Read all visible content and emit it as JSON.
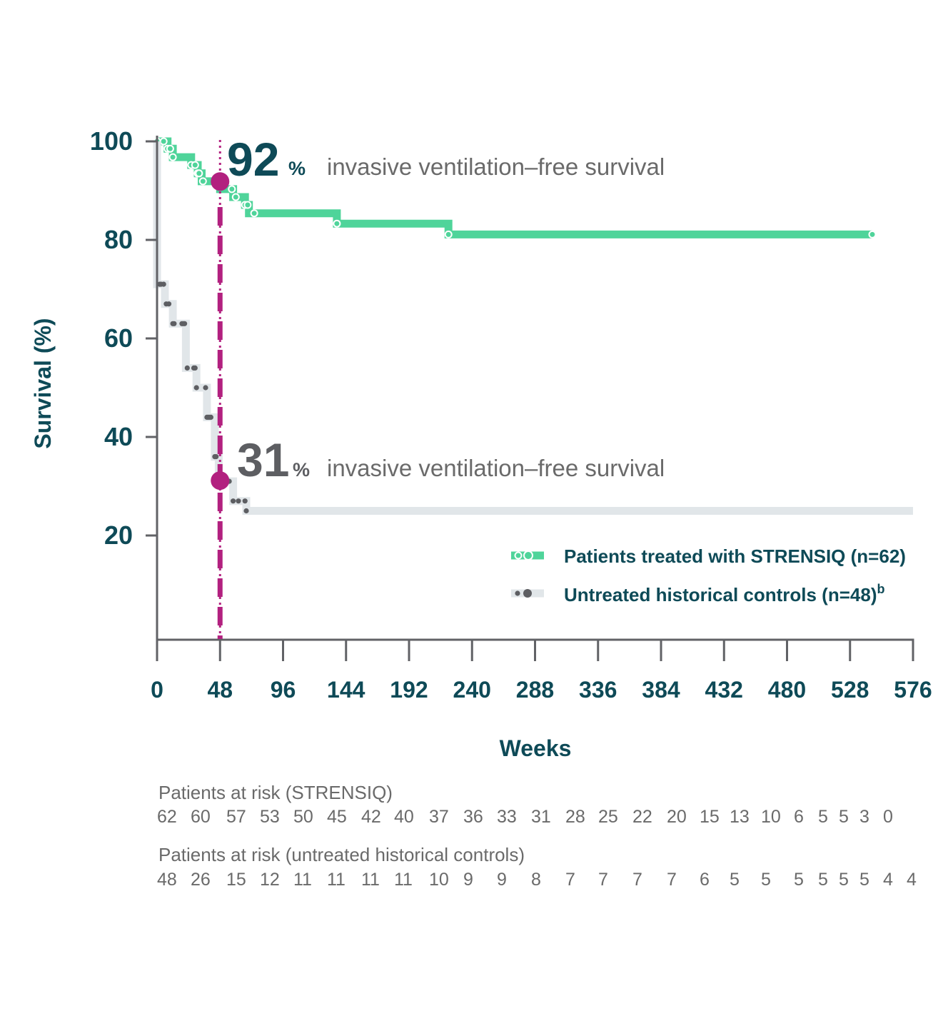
{
  "colors": {
    "axis": "#616266",
    "label": "#0e4a57",
    "treated": "#4fd49a",
    "control_line": "#e1e6e9",
    "control_dot": "#5d5e62",
    "marker": "#b2207f",
    "text_gray": "#6a6a6a"
  },
  "chart_data": {
    "type": "line",
    "xlabel": "Weeks",
    "ylabel": "Survival (%)",
    "xlim": [
      0,
      576
    ],
    "ylim": [
      0,
      100
    ],
    "x_ticks": [
      "0",
      "48",
      "96",
      "144",
      "192",
      "240",
      "288",
      "336",
      "384",
      "432",
      "480",
      "528",
      "576"
    ],
    "y_ticks": [
      "20",
      "40",
      "60",
      "80",
      "100"
    ],
    "series": [
      {
        "name": "Patients treated with STRENSIQ (n=62)",
        "style": "step",
        "points": [
          [
            0,
            100
          ],
          [
            8,
            100
          ],
          [
            8,
            98.5
          ],
          [
            12,
            98.5
          ],
          [
            12,
            96.8
          ],
          [
            26,
            96.8
          ],
          [
            26,
            95.2
          ],
          [
            31,
            95.2
          ],
          [
            31,
            93.5
          ],
          [
            34,
            93.5
          ],
          [
            34,
            91.9
          ],
          [
            48,
            91.9
          ],
          [
            48,
            90.3
          ],
          [
            58,
            90.3
          ],
          [
            58,
            88.7
          ],
          [
            67,
            88.7
          ],
          [
            67,
            87.1
          ],
          [
            70,
            87.1
          ],
          [
            70,
            85.4
          ],
          [
            137,
            85.4
          ],
          [
            137,
            83.3
          ],
          [
            222,
            83.3
          ],
          [
            222,
            81.1
          ],
          [
            545,
            81.1
          ]
        ],
        "censor_x": [
          0,
          5,
          8,
          10,
          12,
          26,
          29,
          31,
          32,
          35,
          57,
          60,
          67,
          69,
          74,
          137,
          222,
          545
        ]
      },
      {
        "name": "Untreated historical controls (n=48)",
        "style": "step",
        "points": [
          [
            0,
            100
          ],
          [
            0,
            71
          ],
          [
            6,
            71
          ],
          [
            6,
            67
          ],
          [
            12,
            67
          ],
          [
            12,
            63
          ],
          [
            22,
            63
          ],
          [
            22,
            54
          ],
          [
            30,
            54
          ],
          [
            30,
            50
          ],
          [
            38,
            50
          ],
          [
            38,
            44
          ],
          [
            44,
            44
          ],
          [
            44,
            36
          ],
          [
            47,
            36
          ],
          [
            47,
            31
          ],
          [
            58,
            31
          ],
          [
            58,
            27
          ],
          [
            68,
            27
          ],
          [
            68,
            25
          ],
          [
            576,
            25
          ]
        ],
        "censor_x": [
          2,
          3,
          5,
          7,
          9,
          12,
          13,
          19,
          20,
          21,
          23,
          28,
          29,
          30,
          37,
          38,
          40,
          39,
          41,
          44,
          45,
          48,
          55,
          58,
          62,
          68,
          67
        ]
      }
    ],
    "reference_line": {
      "x": 48
    },
    "highlight_points": [
      [
        48,
        92
      ],
      [
        48,
        31
      ]
    ],
    "annotations": [
      {
        "value": "92",
        "unit": "%",
        "text": "invasive ventilation–free survival"
      },
      {
        "value": "31",
        "unit": "%",
        "text": "invasive ventilation–free survival"
      }
    ],
    "legend": {
      "placement": "bottom-right",
      "items": [
        {
          "label": "Patients treated with STRENSIQ (n=62)",
          "sup": ""
        },
        {
          "label": "Untreated historical controls (n=48)",
          "sup": "b"
        }
      ]
    }
  },
  "risk_table": {
    "treated_title": "Patients at risk (STRENSIQ)",
    "treated_values": [
      "62",
      "60",
      "57",
      "53",
      "50",
      "45",
      "42",
      "40",
      "37",
      "36",
      "33",
      "31",
      "28",
      "25",
      "22",
      "20",
      "15",
      "13",
      "10",
      "6",
      "5",
      "5",
      "3",
      "0"
    ],
    "control_title": "Patients at risk (untreated historical controls)",
    "control_values": [
      "48",
      "26",
      "15",
      "12",
      "11",
      "11",
      "11",
      "11",
      "10",
      "9",
      "9",
      "8",
      "7",
      "7",
      "7",
      "7",
      "6",
      "5",
      "5",
      "5",
      "5",
      "5",
      "5",
      "4",
      "4"
    ]
  }
}
